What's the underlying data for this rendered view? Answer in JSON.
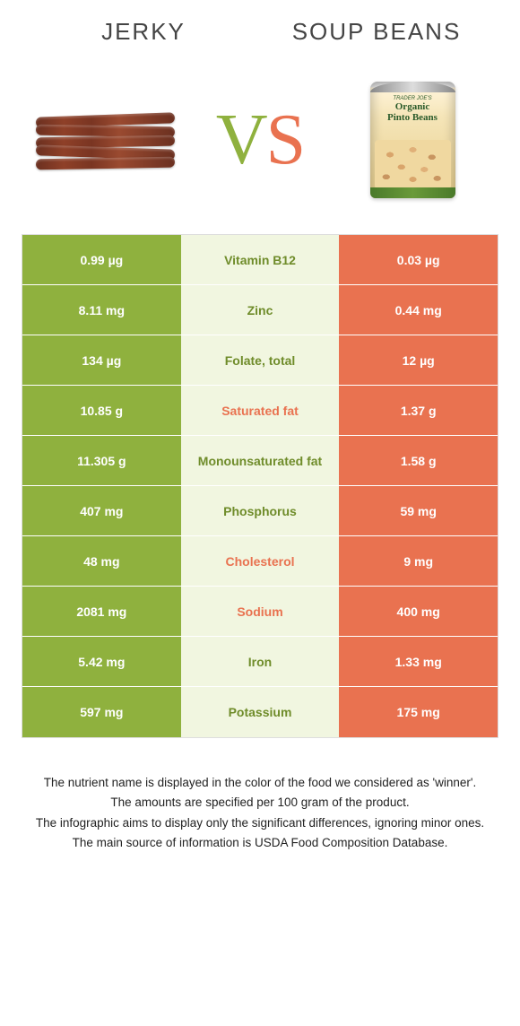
{
  "header": {
    "left_title": "JERKY",
    "right_title": "SOUP BEANS"
  },
  "vs": {
    "v": "V",
    "s": "S"
  },
  "colors": {
    "left_win_bg": "#8fb13e",
    "right_win_bg": "#e97250",
    "loser_bg": "#e5e5e5",
    "mid_bg": "#f1f6e0",
    "mid_left_text": "#6f8c2a",
    "mid_right_text": "#e97250"
  },
  "rows": [
    {
      "nutrient": "Vitamin B12",
      "left": "0.99 µg",
      "right": "0.03 µg",
      "winner": "left"
    },
    {
      "nutrient": "Zinc",
      "left": "8.11 mg",
      "right": "0.44 mg",
      "winner": "left"
    },
    {
      "nutrient": "Folate, total",
      "left": "134 µg",
      "right": "12 µg",
      "winner": "left"
    },
    {
      "nutrient": "Saturated fat",
      "left": "10.85 g",
      "right": "1.37 g",
      "winner": "right"
    },
    {
      "nutrient": "Monounsaturated fat",
      "left": "11.305 g",
      "right": "1.58 g",
      "winner": "left"
    },
    {
      "nutrient": "Phosphorus",
      "left": "407 mg",
      "right": "59 mg",
      "winner": "left"
    },
    {
      "nutrient": "Cholesterol",
      "left": "48 mg",
      "right": "9 mg",
      "winner": "right"
    },
    {
      "nutrient": "Sodium",
      "left": "2081 mg",
      "right": "400 mg",
      "winner": "right"
    },
    {
      "nutrient": "Iron",
      "left": "5.42 mg",
      "right": "1.33 mg",
      "winner": "left"
    },
    {
      "nutrient": "Potassium",
      "left": "597 mg",
      "right": "175 mg",
      "winner": "left"
    }
  ],
  "footer": {
    "l1": "The nutrient name is displayed in the color of the food we considered as 'winner'.",
    "l2": "The amounts are specified per 100 gram of the product.",
    "l3": "The infographic aims to display only the significant differences, ignoring minor ones.",
    "l4": "The main source of information is USDA Food Composition Database."
  },
  "can": {
    "brand": "TRADER JOE'S",
    "name1": "Organic",
    "name2": "Pinto Beans"
  }
}
